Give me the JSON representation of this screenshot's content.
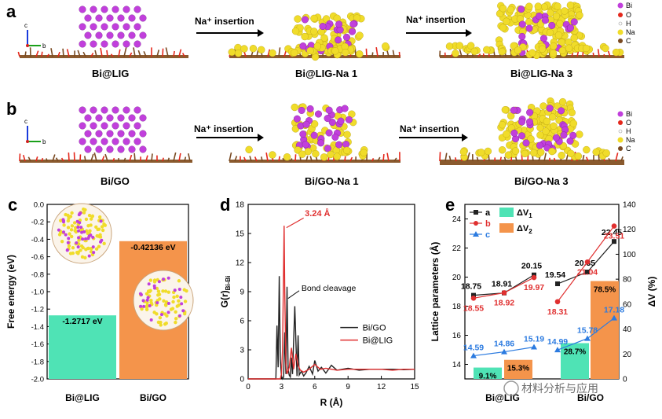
{
  "panels": {
    "a": {
      "letter": "a",
      "arrow_label_1": "Na⁺ insertion",
      "arrow_label_2": "Na⁺ insertion",
      "captions": [
        "Bi@LIG",
        "Bi@LIG-Na 1",
        "Bi@LIG-Na 3"
      ],
      "legend": [
        "Bi",
        "O",
        "H",
        "Na",
        "C"
      ],
      "axes": [
        "c",
        "b"
      ]
    },
    "b": {
      "letter": "b",
      "arrow_label_1": "Na⁺ insertion",
      "arrow_label_2": "Na⁺ insertion",
      "captions": [
        "Bi/GO",
        "Bi/GO-Na 1",
        "Bi/GO-Na 3"
      ],
      "legend": [
        "Bi",
        "O",
        "H",
        "Na",
        "C"
      ],
      "axes": [
        "c",
        "b"
      ]
    },
    "c": {
      "letter": "c"
    },
    "d": {
      "letter": "d"
    },
    "e": {
      "letter": "e"
    }
  },
  "colors": {
    "bi": "#c13fdc",
    "na": "#f0dc2a",
    "o": "#e4281c",
    "c": "#7a4a22",
    "green": "#4fe3b5",
    "orange": "#f4944b",
    "black_series": "#222222",
    "red_series": "#e03030",
    "blue_series": "#2c7be0"
  },
  "watermark": "材料分析与应用",
  "chart_data": [
    {
      "panel": "c",
      "type": "bar",
      "categories": [
        "Bi@LIG",
        "Bi/GO"
      ],
      "values": [
        -1.2717,
        -0.42136
      ],
      "value_labels": [
        "-1.2717 eV",
        "-0.42136 eV"
      ],
      "ylabel": "Free energy (eV)",
      "ylim": [
        0,
        -2.0
      ],
      "yticks": [
        "0.0",
        "-0.2",
        "-0.4",
        "-0.6",
        "-0.8",
        "-1.0",
        "-1.2",
        "-1.4",
        "-1.6",
        "-1.8",
        "-2.0"
      ],
      "axis_inverted": true,
      "bar_colors": [
        "#4fe3b5",
        "#f4944b"
      ]
    },
    {
      "panel": "d",
      "type": "line",
      "xlabel": "R (Å)",
      "ylabel": "G(r)",
      "ylabel_sub": "Bi-Bi",
      "xlim": [
        0,
        15
      ],
      "ylim": [
        0,
        18
      ],
      "xticks": [
        "0",
        "3",
        "6",
        "9",
        "12",
        "15"
      ],
      "yticks": [
        "0",
        "3",
        "6",
        "9",
        "12",
        "15",
        "18"
      ],
      "annotations": [
        "3.24 Å",
        "Bond cleavage"
      ],
      "legend": "right",
      "series": [
        {
          "name": "Bi/GO",
          "color": "#222222",
          "x": [
            0,
            2.5,
            2.6,
            2.7,
            2.8,
            2.9,
            3.0,
            3.1,
            3.2,
            3.3,
            3.4,
            3.5,
            3.6,
            3.7,
            3.8,
            3.9,
            4.0,
            4.2,
            4.4,
            4.5,
            4.6,
            4.8,
            5.0,
            5.2,
            5.5,
            5.8,
            6.0,
            6.3,
            6.6,
            7.0,
            7.5,
            8.0,
            8.5,
            9.0,
            9.5,
            10,
            11,
            12,
            13,
            14,
            15
          ],
          "y": [
            0,
            0,
            5.5,
            1.2,
            10.6,
            2.0,
            0.3,
            0.0,
            0.2,
            4.8,
            0.5,
            9.5,
            1.0,
            0.4,
            0.2,
            2.2,
            0.5,
            7.5,
            0.3,
            4.5,
            0.4,
            0.8,
            0.3,
            0.6,
            1.3,
            0.5,
            1.9,
            0.8,
            1.2,
            0.6,
            1.4,
            0.9,
            1.0,
            1.1,
            1.0,
            0.9,
            1.0,
            1.0,
            1.0,
            0.95,
            1.0
          ]
        },
        {
          "name": "Bi@LIG",
          "color": "#e03030",
          "x": [
            0,
            2.9,
            3.0,
            3.1,
            3.2,
            3.24,
            3.3,
            3.4,
            3.5,
            3.7,
            3.9,
            4.1,
            4.3,
            4.5,
            4.7,
            5.0,
            5.5,
            6.0,
            6.5,
            7.0,
            8.0,
            9.0,
            10,
            11,
            12,
            13,
            14,
            15
          ],
          "y": [
            0,
            0,
            0.5,
            3.0,
            12.0,
            15.8,
            9.0,
            1.5,
            0.5,
            1.2,
            3.2,
            1.0,
            2.6,
            1.4,
            0.9,
            0.7,
            1.0,
            1.5,
            1.0,
            1.1,
            0.9,
            1.0,
            1.0,
            1.0,
            1.0,
            0.9,
            1.0,
            1.0
          ]
        }
      ]
    },
    {
      "panel": "e",
      "type": "line",
      "categories": [
        "Bi@LIG",
        "Bi/GO"
      ],
      "ylabel": "Lattice parameters (Å)",
      "y2label": "ΔV (%)",
      "ylim": [
        13,
        25
      ],
      "y2lim": [
        0,
        140
      ],
      "yticks": [
        "14",
        "16",
        "18",
        "20",
        "22",
        "24"
      ],
      "y2ticks": [
        "0",
        "20",
        "40",
        "60",
        "80",
        "100",
        "120",
        "140"
      ],
      "series": [
        {
          "name": "a",
          "color": "#222222",
          "marker": "square",
          "groups": [
            [
              18.75,
              18.91,
              20.15
            ],
            [
              19.54,
              20.35,
              22.45
            ]
          ]
        },
        {
          "name": "b",
          "color": "#e03030",
          "marker": "circle",
          "groups": [
            [
              18.55,
              18.92,
              19.97
            ],
            [
              18.31,
              21.04,
              23.51
            ]
          ]
        },
        {
          "name": "c",
          "color": "#2c7be0",
          "marker": "triangle",
          "groups": [
            [
              14.59,
              14.86,
              15.19
            ],
            [
              14.99,
              15.78,
              17.18
            ]
          ]
        }
      ],
      "bars": [
        {
          "name": "ΔV1",
          "values": [
            9.1,
            28.7
          ],
          "labels": [
            "9.1%",
            "28.7%"
          ],
          "color": "#4fe3b5"
        },
        {
          "name": "ΔV2",
          "values": [
            15.3,
            78.5
          ],
          "labels": [
            "15.3%",
            "78.5%"
          ],
          "color": "#f4944b"
        }
      ],
      "point_labels": {
        "a": [
          [
            "18.75",
            "18.91",
            "20.15"
          ],
          [
            "19.54",
            "20.35",
            "22.45"
          ]
        ],
        "b": [
          [
            "18.55",
            "18.92",
            "19.97"
          ],
          [
            "18.31",
            "21.04",
            "23.51"
          ]
        ],
        "c": [
          [
            "14.59",
            "14.86",
            "15.19"
          ],
          [
            "14.99",
            "15.78",
            "17.18"
          ]
        ]
      }
    }
  ]
}
